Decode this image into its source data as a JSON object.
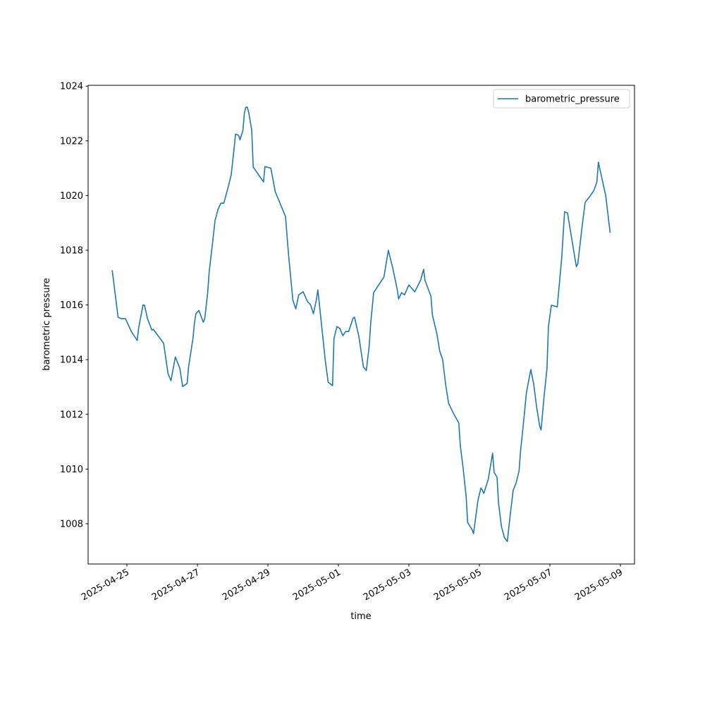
{
  "chart_data": {
    "type": "line",
    "xlabel": "time",
    "ylabel": "barometric pressure",
    "x": [
      "2025-04-24 14:00",
      "2025-04-24 18:00",
      "2025-04-24 20:00",
      "2025-04-24 23:00",
      "2025-04-25 03:00",
      "2025-04-25 07:00",
      "2025-04-25 08:00",
      "2025-04-25 11:00",
      "2025-04-25 12:00",
      "2025-04-25 14:00",
      "2025-04-25 17:00",
      "2025-04-25 18:00",
      "2025-04-26 01:00",
      "2025-04-26 04:00",
      "2025-04-26 06:00",
      "2025-04-26 09:00",
      "2025-04-26 12:00",
      "2025-04-26 14:00",
      "2025-04-26 17:00",
      "2025-04-26 18:00",
      "2025-04-26 21:00",
      "2025-04-26 22:00",
      "2025-04-26 23:00",
      "2025-04-27 01:00",
      "2025-04-27 04:00",
      "2025-04-27 05:00",
      "2025-04-27 07:00",
      "2025-04-27 08:00",
      "2025-04-27 10:00",
      "2025-04-27 12:00",
      "2025-04-27 14:00",
      "2025-04-27 16:00",
      "2025-04-27 18:00",
      "2025-04-27 21:00",
      "2025-04-27 23:00",
      "2025-04-28 01:00",
      "2025-04-28 02:00",
      "2025-04-28 04:00",
      "2025-04-28 05:00",
      "2025-04-28 07:00",
      "2025-04-28 08:00",
      "2025-04-28 09:00",
      "2025-04-28 10:00",
      "2025-04-28 11:00",
      "2025-04-28 13:00",
      "2025-04-28 14:00",
      "2025-04-28 21:00",
      "2025-04-28 22:00",
      "2025-04-29 02:00",
      "2025-04-29 05:00",
      "2025-04-29 12:00",
      "2025-04-29 14:00",
      "2025-04-29 17:00",
      "2025-04-29 19:00",
      "2025-04-29 21:00",
      "2025-04-30 00:00",
      "2025-04-30 03:00",
      "2025-04-30 05:00",
      "2025-04-30 07:00",
      "2025-04-30 09:00",
      "2025-04-30 10:00",
      "2025-04-30 11:00",
      "2025-04-30 13:00",
      "2025-04-30 15:00",
      "2025-04-30 17:00",
      "2025-04-30 20:00",
      "2025-04-30 21:00",
      "2025-04-30 23:00",
      "2025-05-01 01:00",
      "2025-05-01 03:00",
      "2025-05-01 05:00",
      "2025-05-01 07:00",
      "2025-05-01 10:00",
      "2025-05-01 11:00",
      "2025-05-01 14:00",
      "2025-05-01 17:00",
      "2025-05-01 19:00",
      "2025-05-01 21:00",
      "2025-05-01 22:00",
      "2025-05-02 00:00",
      "2025-05-02 07:00",
      "2025-05-02 10:00",
      "2025-05-02 13:00",
      "2025-05-02 16:00",
      "2025-05-02 17:00",
      "2025-05-02 19:00",
      "2025-05-02 21:00",
      "2025-05-03 00:00",
      "2025-05-03 04:00",
      "2025-05-03 08:00",
      "2025-05-03 10:00",
      "2025-05-03 11:00",
      "2025-05-03 15:00",
      "2025-05-03 16:00",
      "2025-05-03 19:00",
      "2025-05-03 21:00",
      "2025-05-03 23:00",
      "2025-05-04 01:00",
      "2025-05-04 03:00",
      "2025-05-04 06:00",
      "2025-05-04 10:00",
      "2025-05-04 11:00",
      "2025-05-04 13:00",
      "2025-05-04 15:00",
      "2025-05-04 16:00",
      "2025-05-04 19:00",
      "2025-05-04 20:00",
      "2025-05-04 23:00",
      "2025-05-05 01:00",
      "2025-05-05 02:00",
      "2025-05-05 03:00",
      "2025-05-05 06:00",
      "2025-05-05 09:00",
      "2025-05-05 10:00",
      "2025-05-05 12:00",
      "2025-05-05 13:00",
      "2025-05-05 15:00",
      "2025-05-05 17:00",
      "2025-05-05 19:00",
      "2025-05-05 21:00",
      "2025-05-05 23:00",
      "2025-05-06 01:00",
      "2025-05-06 03:00",
      "2025-05-06 04:00",
      "2025-05-06 06:00",
      "2025-05-06 08:00",
      "2025-05-06 11:00",
      "2025-05-06 13:00",
      "2025-05-06 15:00",
      "2025-05-06 17:00",
      "2025-05-06 18:00",
      "2025-05-06 20:00",
      "2025-05-06 22:00",
      "2025-05-06 23:00",
      "2025-05-07 01:00",
      "2025-05-07 05:00",
      "2025-05-07 08:00",
      "2025-05-07 10:00",
      "2025-05-07 12:00",
      "2025-05-07 15:00",
      "2025-05-07 18:00",
      "2025-05-07 19:00",
      "2025-05-07 22:00",
      "2025-05-08 00:00",
      "2025-05-08 03:00",
      "2025-05-08 06:00",
      "2025-05-08 08:00",
      "2025-05-08 09:00",
      "2025-05-08 13:00",
      "2025-05-08 14:00",
      "2025-05-08 17:00"
    ],
    "series": [
      {
        "name": "barometric_pressure",
        "color": "#1f77b4",
        "values": [
          1017.27,
          1015.55,
          1015.5,
          1015.5,
          1015.03,
          1014.7,
          1015.16,
          1016.0,
          1015.99,
          1015.5,
          1015.08,
          1015.11,
          1014.6,
          1013.49,
          1013.23,
          1014.1,
          1013.69,
          1013.02,
          1013.13,
          1013.74,
          1014.78,
          1015.34,
          1015.68,
          1015.8,
          1015.37,
          1015.5,
          1016.45,
          1017.2,
          1018.12,
          1019.08,
          1019.49,
          1019.72,
          1019.72,
          1020.32,
          1020.75,
          1021.73,
          1022.25,
          1022.2,
          1022.04,
          1022.38,
          1023.02,
          1023.23,
          1023.23,
          1023.02,
          1022.38,
          1021.04,
          1020.5,
          1021.06,
          1021.0,
          1020.14,
          1019.23,
          1017.87,
          1016.17,
          1015.86,
          1016.37,
          1016.48,
          1016.12,
          1016.01,
          1015.68,
          1016.19,
          1016.55,
          1016.06,
          1015.03,
          1014.0,
          1013.18,
          1013.05,
          1014.78,
          1015.21,
          1015.14,
          1014.88,
          1015.03,
          1015.03,
          1015.52,
          1015.55,
          1014.83,
          1013.74,
          1013.6,
          1014.52,
          1015.34,
          1016.45,
          1017.02,
          1018.0,
          1017.35,
          1016.58,
          1016.22,
          1016.45,
          1016.37,
          1016.73,
          1016.48,
          1016.91,
          1017.3,
          1016.89,
          1016.32,
          1015.63,
          1014.96,
          1014.31,
          1014.0,
          1013.1,
          1012.41,
          1012.07,
          1011.68,
          1010.86,
          1010.0,
          1008.98,
          1008.05,
          1007.79,
          1007.64,
          1008.85,
          1009.31,
          1009.23,
          1009.11,
          1009.62,
          1010.58,
          1009.88,
          1009.7,
          1008.77,
          1007.9,
          1007.5,
          1007.35,
          1008.33,
          1009.23,
          1009.49,
          1009.93,
          1010.65,
          1011.68,
          1012.79,
          1013.64,
          1013.1,
          1012.25,
          1011.58,
          1011.43,
          1012.64,
          1013.67,
          1015.21,
          1015.99,
          1015.93,
          1017.69,
          1019.41,
          1019.36,
          1018.38,
          1017.4,
          1017.51,
          1018.9,
          1019.75,
          1019.95,
          1020.19,
          1020.5,
          1021.22,
          1020.24,
          1020.0,
          1018.64
        ]
      }
    ],
    "xlim": [
      "2025-04-23 21:36",
      "2025-05-09 09:36"
    ],
    "xticks": [
      "2025-04-25",
      "2025-04-27",
      "2025-04-29",
      "2025-05-01",
      "2025-05-03",
      "2025-05-05",
      "2025-05-07",
      "2025-05-09"
    ],
    "ylim": [
      1006.53,
      1024.03
    ],
    "yticks": [
      1008,
      1010,
      1012,
      1014,
      1016,
      1018,
      1020,
      1022,
      1024
    ],
    "grid": false,
    "legend": "upper right"
  }
}
